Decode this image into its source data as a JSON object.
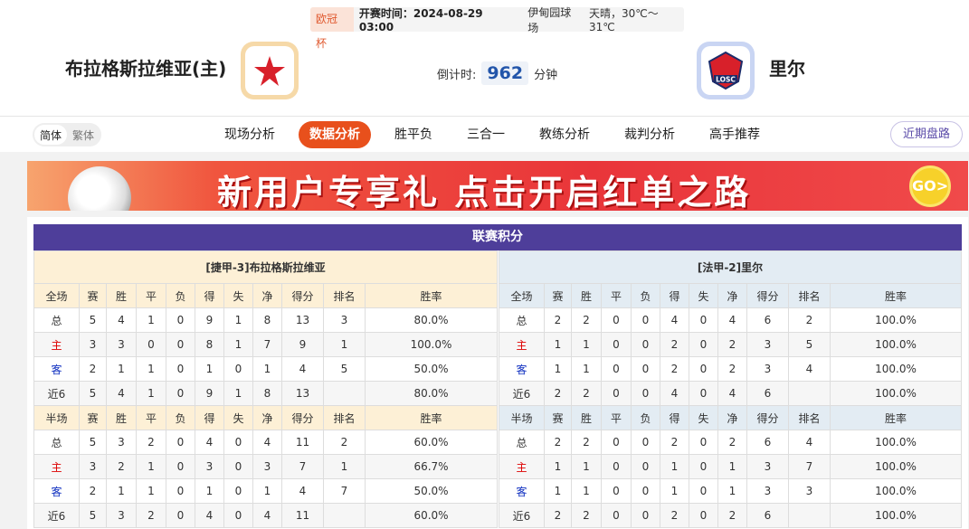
{
  "match": {
    "competition": "欧冠杯",
    "kickoff": "开赛时间：2024-08-29 03:00",
    "venue": "伊甸园球场",
    "weather": "天晴，30℃～31℃",
    "home_team": "布拉格斯拉维亚(主)",
    "away_team": "里尔",
    "countdown_label": "倒计时:",
    "countdown_value": "962",
    "countdown_unit": "分钟",
    "away_logo_text": "LOSC"
  },
  "nav": {
    "lang": [
      "简体",
      "繁体"
    ],
    "tabs": [
      "现场分析",
      "数据分析",
      "胜平负",
      "三合一",
      "教练分析",
      "裁判分析",
      "高手推荐"
    ],
    "active_tab": "数据分析",
    "recent": "近期盘路"
  },
  "banner": {
    "text": "新用户专享礼 点击开启红单之路",
    "go": "GO>"
  },
  "standings": {
    "title": "联赛积分",
    "columns": [
      "赛",
      "胜",
      "平",
      "负",
      "得",
      "失",
      "净",
      "得分",
      "排名",
      "胜率"
    ],
    "teams": [
      {
        "header": "[捷甲-3]布拉格斯拉维亚",
        "full": {
          "label": "全场",
          "rows": [
            [
              "总",
              "5",
              "4",
              "1",
              "0",
              "9",
              "1",
              "8",
              "13",
              "3",
              "80.0%"
            ],
            [
              "主",
              "3",
              "3",
              "0",
              "0",
              "8",
              "1",
              "7",
              "9",
              "1",
              "100.0%"
            ],
            [
              "客",
              "2",
              "1",
              "1",
              "0",
              "1",
              "0",
              "1",
              "4",
              "5",
              "50.0%"
            ],
            [
              "近6",
              "5",
              "4",
              "1",
              "0",
              "9",
              "1",
              "8",
              "13",
              "",
              "80.0%"
            ]
          ]
        },
        "half": {
          "label": "半场",
          "rows": [
            [
              "总",
              "5",
              "3",
              "2",
              "0",
              "4",
              "0",
              "4",
              "11",
              "2",
              "60.0%"
            ],
            [
              "主",
              "3",
              "2",
              "1",
              "0",
              "3",
              "0",
              "3",
              "7",
              "1",
              "66.7%"
            ],
            [
              "客",
              "2",
              "1",
              "1",
              "0",
              "1",
              "0",
              "1",
              "4",
              "7",
              "50.0%"
            ],
            [
              "近6",
              "5",
              "3",
              "2",
              "0",
              "4",
              "0",
              "4",
              "11",
              "",
              "60.0%"
            ]
          ]
        }
      },
      {
        "header": "[法甲-2]里尔",
        "full": {
          "label": "全场",
          "rows": [
            [
              "总",
              "2",
              "2",
              "0",
              "0",
              "4",
              "0",
              "4",
              "6",
              "2",
              "100.0%"
            ],
            [
              "主",
              "1",
              "1",
              "0",
              "0",
              "2",
              "0",
              "2",
              "3",
              "5",
              "100.0%"
            ],
            [
              "客",
              "1",
              "1",
              "0",
              "0",
              "2",
              "0",
              "2",
              "3",
              "4",
              "100.0%"
            ],
            [
              "近6",
              "2",
              "2",
              "0",
              "0",
              "4",
              "0",
              "4",
              "6",
              "",
              "100.0%"
            ]
          ]
        },
        "half": {
          "label": "半场",
          "rows": [
            [
              "总",
              "2",
              "2",
              "0",
              "0",
              "2",
              "0",
              "2",
              "6",
              "4",
              "100.0%"
            ],
            [
              "主",
              "1",
              "1",
              "0",
              "0",
              "1",
              "0",
              "1",
              "3",
              "7",
              "100.0%"
            ],
            [
              "客",
              "1",
              "1",
              "0",
              "0",
              "1",
              "0",
              "1",
              "3",
              "3",
              "100.0%"
            ],
            [
              "近6",
              "2",
              "2",
              "0",
              "0",
              "2",
              "0",
              "2",
              "6",
              "",
              "100.0%"
            ]
          ]
        }
      }
    ]
  },
  "colors": {
    "title_bar": "#4e3e9a",
    "active_tab": "#e8501c",
    "home": "#dd0000",
    "away": "#1030c0"
  }
}
